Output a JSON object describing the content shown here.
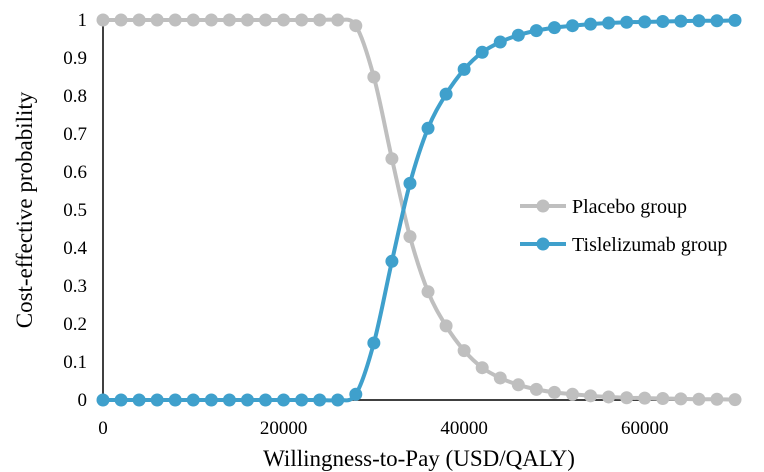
{
  "chart_data": {
    "type": "line",
    "title": "",
    "xlabel": "Willingness-to-Pay (USD/QALY)",
    "ylabel": "Cost-effective probability",
    "xlim": [
      0,
      70000
    ],
    "ylim": [
      0,
      1
    ],
    "x_ticks": [
      0,
      20000,
      40000,
      60000
    ],
    "x_tick_labels": [
      "0",
      "20000",
      "40000",
      "60000"
    ],
    "y_ticks": [
      0,
      0.1,
      0.2,
      0.3,
      0.4,
      0.5,
      0.6,
      0.7,
      0.8,
      0.9,
      1
    ],
    "y_tick_labels": [
      "0",
      "0.1",
      "0.2",
      "0.3",
      "0.4",
      "0.5",
      "0.6",
      "0.7",
      "0.8",
      "0.9",
      "1"
    ],
    "grid": false,
    "legend_position": "right",
    "x": [
      0,
      2000,
      4000,
      6000,
      8000,
      10000,
      12000,
      14000,
      16000,
      18000,
      20000,
      22000,
      24000,
      26000,
      28000,
      30000,
      32000,
      34000,
      36000,
      38000,
      40000,
      42000,
      44000,
      46000,
      48000,
      50000,
      52000,
      54000,
      56000,
      58000,
      60000,
      62000,
      64000,
      66000,
      68000,
      70000
    ],
    "series": [
      {
        "name": "Placebo group",
        "color": "#bfbfbf",
        "values": [
          1,
          1,
          1,
          1,
          1,
          1,
          1,
          1,
          1,
          1,
          1,
          1,
          1,
          1,
          0.985,
          0.85,
          0.635,
          0.43,
          0.285,
          0.195,
          0.13,
          0.085,
          0.058,
          0.04,
          0.028,
          0.02,
          0.015,
          0.011,
          0.008,
          0.006,
          0.005,
          0.004,
          0.003,
          0.002,
          0.002,
          0.001
        ]
      },
      {
        "name": "Tislelizumab group",
        "color": "#3fa0cc",
        "values": [
          0,
          0,
          0,
          0,
          0,
          0,
          0,
          0,
          0,
          0,
          0,
          0,
          0,
          0,
          0.015,
          0.15,
          0.365,
          0.57,
          0.715,
          0.805,
          0.87,
          0.915,
          0.942,
          0.96,
          0.972,
          0.98,
          0.985,
          0.989,
          0.992,
          0.994,
          0.995,
          0.996,
          0.997,
          0.998,
          0.998,
          0.999
        ]
      }
    ]
  }
}
